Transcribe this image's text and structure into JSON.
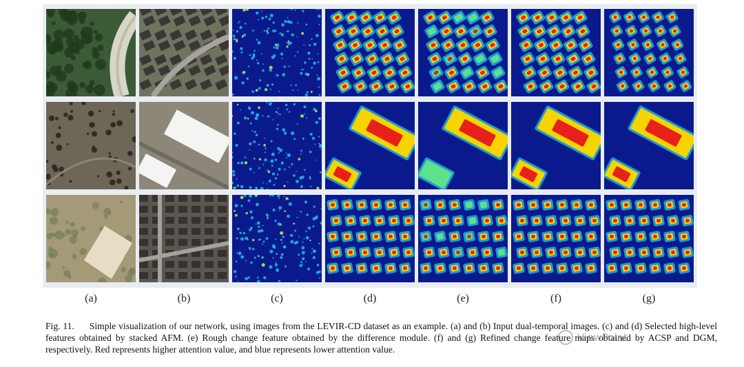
{
  "figure": {
    "columns": [
      {
        "label": "(a)",
        "kind": "optical"
      },
      {
        "label": "(b)",
        "kind": "optical"
      },
      {
        "label": "(c)",
        "kind": "heatmap"
      },
      {
        "label": "(d)",
        "kind": "heatmap"
      },
      {
        "label": "(e)",
        "kind": "heatmap"
      },
      {
        "label": "(f)",
        "kind": "heatmap"
      },
      {
        "label": "(g)",
        "kind": "heatmap"
      }
    ],
    "rows": [
      {
        "scene": "residential-arcs"
      },
      {
        "scene": "warehouse"
      },
      {
        "scene": "housing-blocks"
      }
    ]
  },
  "caption": {
    "label": "Fig. 11.",
    "text": "Simple visualization of our network, using images from the LEVIR-CD dataset as an example. (a) and (b) Input dual-temporal images. (c) and (d) Selected high-level features obtained by stacked AFM. (e) Rough change feature obtained by the difference module. (f) and (g) Refined change feature maps obtained by ACSP and DGM, respectively. Red represents higher attention value, and blue represents lower attention value."
  },
  "watermark": {
    "text": "ViewPoint"
  },
  "colors": {
    "heat_low": "#0a1a8c",
    "heat_mid": "#1fb3e0",
    "heat_high": "#e8201a"
  }
}
